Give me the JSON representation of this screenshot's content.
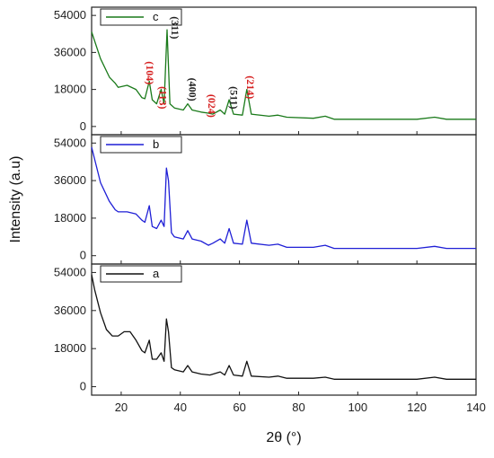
{
  "chart_data": {
    "type": "line",
    "xlabel": "2θ (°)",
    "ylabel": "Intensity (a.u)",
    "xlim": [
      10,
      140
    ],
    "x_ticks": [
      20,
      40,
      60,
      80,
      100,
      120,
      140
    ],
    "y_ticks": [
      0,
      18000,
      36000,
      54000
    ],
    "panels": [
      {
        "legend": "c",
        "color": "#1a7a1a",
        "ylim": [
          -4000,
          58000
        ],
        "series": [
          {
            "name": "c",
            "x": [
              10,
              13,
              16,
              18,
              19,
              22,
              25,
              27,
              28,
              29.5,
              30.5,
              32,
              33.5,
              34.5,
              35.5,
              36.5,
              38,
              41,
              42.5,
              44,
              47,
              49.5,
              51,
              53.5,
              55,
              56.5,
              58,
              61,
              62.5,
              64,
              70,
              73,
              76,
              85,
              89,
              92,
              100,
              110,
              120,
              126,
              130,
              140
            ],
            "y": [
              46000,
              33000,
              24000,
              21000,
              19000,
              20000,
              18000,
              14000,
              13500,
              22000,
              13000,
              11000,
              18000,
              11000,
              47000,
              11000,
              9000,
              8000,
              11000,
              8000,
              7000,
              6500,
              6000,
              8000,
              6000,
              13000,
              6000,
              5500,
              18000,
              6000,
              5000,
              5500,
              4500,
              4000,
              5000,
              3500,
              3500,
              3500,
              3500,
              4500,
              3500,
              3500
            ]
          }
        ],
        "annotations": [
          {
            "label": "(104)",
            "x": 28.5,
            "y": 26000,
            "color": "#d62020"
          },
          {
            "label": "(311)",
            "x": 37,
            "y": 48000,
            "color": "#222222"
          },
          {
            "label": "(113)",
            "x": 33,
            "y": 14000,
            "color": "#d62020"
          },
          {
            "label": "(400)",
            "x": 43,
            "y": 18000,
            "color": "#222222"
          },
          {
            "label": "(024)",
            "x": 49.5,
            "y": 10000,
            "color": "#d62020"
          },
          {
            "label": "(511)",
            "x": 57,
            "y": 14000,
            "color": "#222222"
          },
          {
            "label": "(214)",
            "x": 62.5,
            "y": 19000,
            "color": "#d62020"
          }
        ]
      },
      {
        "legend": "b",
        "color": "#1f1fd6",
        "ylim": [
          -4000,
          58000
        ],
        "series": [
          {
            "name": "b",
            "x": [
              10,
              13,
              16,
              18,
              19,
              22,
              25,
              27,
              28,
              29.5,
              30.5,
              32,
              33.5,
              34.5,
              35.3,
              36,
              37,
              38,
              41,
              42.5,
              44,
              47,
              49.5,
              51,
              53.5,
              55,
              56.5,
              58,
              61,
              62.5,
              64,
              70,
              73,
              76,
              85,
              89,
              92,
              100,
              110,
              120,
              126,
              130,
              140
            ],
            "y": [
              52000,
              35000,
              26000,
              22000,
              21000,
              21000,
              20000,
              17000,
              16000,
              24000,
              14000,
              13000,
              17000,
              14000,
              42000,
              36000,
              11000,
              9000,
              8000,
              12000,
              8000,
              7000,
              5000,
              6000,
              8000,
              6000,
              13000,
              6000,
              5500,
              17000,
              6000,
              5000,
              5500,
              4000,
              4000,
              5000,
              3500,
              3500,
              3500,
              3500,
              4500,
              3500,
              3500
            ]
          }
        ]
      },
      {
        "legend": "a",
        "color": "#111111",
        "ylim": [
          -4000,
          58000
        ],
        "series": [
          {
            "name": "a",
            "x": [
              10,
              11,
              13,
              15,
              17,
              19,
              21,
              23,
              25,
              27,
              28,
              29.5,
              30.5,
              32,
              33.5,
              34.5,
              35.3,
              36,
              37,
              38,
              41,
              42.5,
              44,
              47,
              50,
              53.5,
              55,
              56.5,
              58,
              61,
              62.5,
              64,
              70,
              73,
              76,
              85,
              89,
              92,
              100,
              110,
              120,
              126,
              130,
              140
            ],
            "y": [
              53000,
              46000,
              35000,
              27000,
              24000,
              24000,
              26000,
              26000,
              22000,
              17000,
              16000,
              22000,
              13000,
              13000,
              16000,
              12000,
              32000,
              26000,
              9000,
              8000,
              7000,
              10000,
              7000,
              6000,
              5500,
              7000,
              5500,
              10000,
              5500,
              5000,
              12000,
              5000,
              4500,
              5000,
              4000,
              4000,
              4500,
              3500,
              3500,
              3500,
              3500,
              4500,
              3500,
              3500
            ]
          }
        ]
      }
    ]
  }
}
